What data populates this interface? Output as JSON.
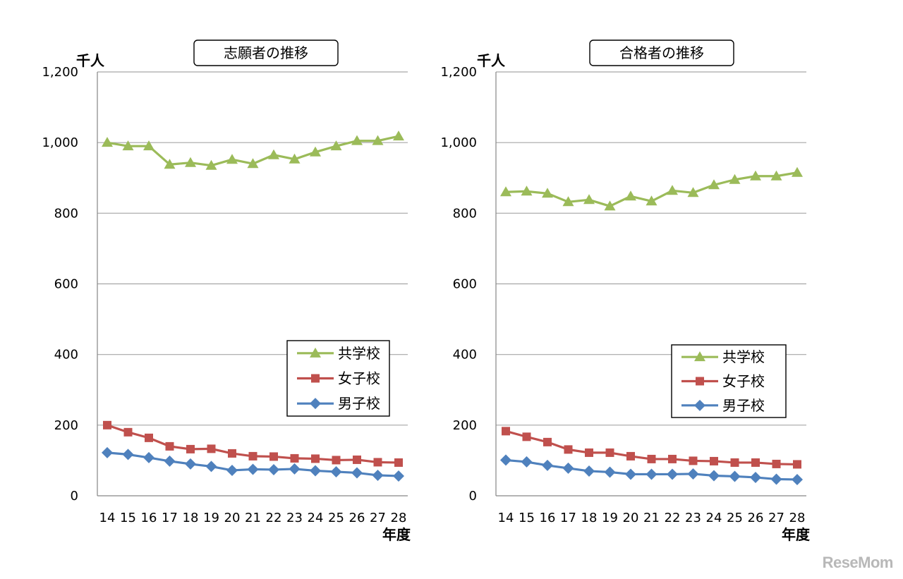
{
  "chart_data": [
    {
      "type": "line",
      "title": "志願者の推移",
      "ylabel": "千人",
      "xlabel": "年度",
      "categories": [
        "14",
        "15",
        "16",
        "17",
        "18",
        "19",
        "20",
        "21",
        "22",
        "23",
        "24",
        "25",
        "26",
        "27",
        "28"
      ],
      "ylim": [
        0,
        1200
      ],
      "yticks": [
        0,
        200,
        400,
        600,
        800,
        1000,
        1200
      ],
      "ytick_labels": [
        "0",
        "200",
        "400",
        "600",
        "800",
        "1,000",
        "1,200"
      ],
      "grid": true,
      "legend_position": "right",
      "series": [
        {
          "name": "共学校",
          "color": "#9bbb59",
          "marker": "triangle",
          "values": [
            1000,
            990,
            990,
            938,
            943,
            935,
            952,
            940,
            965,
            953,
            973,
            990,
            1005,
            1005,
            1018
          ]
        },
        {
          "name": "女子校",
          "color": "#c0504d",
          "marker": "square",
          "values": [
            200,
            180,
            164,
            140,
            132,
            133,
            120,
            112,
            111,
            106,
            105,
            101,
            102,
            95,
            94
          ]
        },
        {
          "name": "男子校",
          "color": "#4f81bd",
          "marker": "diamond",
          "values": [
            122,
            117,
            108,
            98,
            90,
            83,
            72,
            75,
            74,
            76,
            71,
            68,
            65,
            58,
            56
          ]
        }
      ]
    },
    {
      "type": "line",
      "title": "合格者の推移",
      "ylabel": "千人",
      "xlabel": "年度",
      "categories": [
        "14",
        "15",
        "16",
        "17",
        "18",
        "19",
        "20",
        "21",
        "22",
        "23",
        "24",
        "25",
        "26",
        "27",
        "28"
      ],
      "ylim": [
        0,
        1200
      ],
      "yticks": [
        0,
        200,
        400,
        600,
        800,
        1000,
        1200
      ],
      "ytick_labels": [
        "0",
        "200",
        "400",
        "600",
        "800",
        "1,000",
        "1,200"
      ],
      "grid": true,
      "legend_position": "right",
      "series": [
        {
          "name": "共学校",
          "color": "#9bbb59",
          "marker": "triangle",
          "values": [
            860,
            862,
            856,
            832,
            838,
            820,
            848,
            834,
            864,
            858,
            880,
            895,
            905,
            905,
            915
          ]
        },
        {
          "name": "女子校",
          "color": "#c0504d",
          "marker": "square",
          "values": [
            183,
            167,
            152,
            131,
            122,
            122,
            112,
            104,
            104,
            99,
            98,
            94,
            94,
            90,
            89
          ]
        },
        {
          "name": "男子校",
          "color": "#4f81bd",
          "marker": "diamond",
          "values": [
            101,
            96,
            86,
            78,
            70,
            67,
            61,
            61,
            61,
            62,
            57,
            55,
            52,
            47,
            46
          ]
        }
      ]
    }
  ],
  "watermark": "ReseMom"
}
